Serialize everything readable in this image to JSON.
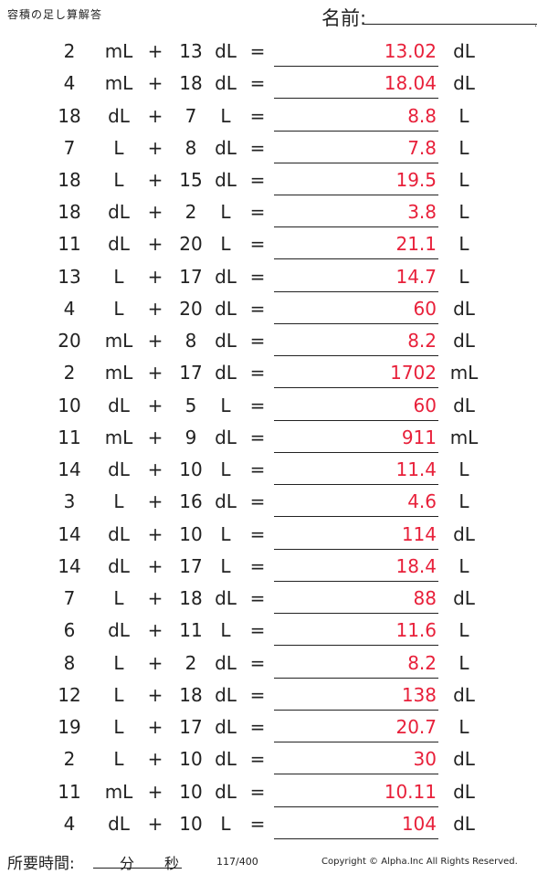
{
  "header": {
    "title": "容積の足し算解答",
    "name_label": "名前:",
    "name_dot": "."
  },
  "problems": [
    {
      "a": "2",
      "ua": "mL",
      "op": "+",
      "b": "13",
      "ub": "dL",
      "eq": "=",
      "ans": "13.02",
      "uans": "dL"
    },
    {
      "a": "4",
      "ua": "mL",
      "op": "+",
      "b": "18",
      "ub": "dL",
      "eq": "=",
      "ans": "18.04",
      "uans": "dL"
    },
    {
      "a": "18",
      "ua": "dL",
      "op": "+",
      "b": "7",
      "ub": "L",
      "eq": "=",
      "ans": "8.8",
      "uans": "L"
    },
    {
      "a": "7",
      "ua": "L",
      "op": "+",
      "b": "8",
      "ub": "dL",
      "eq": "=",
      "ans": "7.8",
      "uans": "L"
    },
    {
      "a": "18",
      "ua": "L",
      "op": "+",
      "b": "15",
      "ub": "dL",
      "eq": "=",
      "ans": "19.5",
      "uans": "L"
    },
    {
      "a": "18",
      "ua": "dL",
      "op": "+",
      "b": "2",
      "ub": "L",
      "eq": "=",
      "ans": "3.8",
      "uans": "L"
    },
    {
      "a": "11",
      "ua": "dL",
      "op": "+",
      "b": "20",
      "ub": "L",
      "eq": "=",
      "ans": "21.1",
      "uans": "L"
    },
    {
      "a": "13",
      "ua": "L",
      "op": "+",
      "b": "17",
      "ub": "dL",
      "eq": "=",
      "ans": "14.7",
      "uans": "L"
    },
    {
      "a": "4",
      "ua": "L",
      "op": "+",
      "b": "20",
      "ub": "dL",
      "eq": "=",
      "ans": "60",
      "uans": "dL"
    },
    {
      "a": "20",
      "ua": "mL",
      "op": "+",
      "b": "8",
      "ub": "dL",
      "eq": "=",
      "ans": "8.2",
      "uans": "dL"
    },
    {
      "a": "2",
      "ua": "mL",
      "op": "+",
      "b": "17",
      "ub": "dL",
      "eq": "=",
      "ans": "1702",
      "uans": "mL"
    },
    {
      "a": "10",
      "ua": "dL",
      "op": "+",
      "b": "5",
      "ub": "L",
      "eq": "=",
      "ans": "60",
      "uans": "dL"
    },
    {
      "a": "11",
      "ua": "mL",
      "op": "+",
      "b": "9",
      "ub": "dL",
      "eq": "=",
      "ans": "911",
      "uans": "mL"
    },
    {
      "a": "14",
      "ua": "dL",
      "op": "+",
      "b": "10",
      "ub": "L",
      "eq": "=",
      "ans": "11.4",
      "uans": "L"
    },
    {
      "a": "3",
      "ua": "L",
      "op": "+",
      "b": "16",
      "ub": "dL",
      "eq": "=",
      "ans": "4.6",
      "uans": "L"
    },
    {
      "a": "14",
      "ua": "dL",
      "op": "+",
      "b": "10",
      "ub": "L",
      "eq": "=",
      "ans": "114",
      "uans": "dL"
    },
    {
      "a": "14",
      "ua": "dL",
      "op": "+",
      "b": "17",
      "ub": "L",
      "eq": "=",
      "ans": "18.4",
      "uans": "L"
    },
    {
      "a": "7",
      "ua": "L",
      "op": "+",
      "b": "18",
      "ub": "dL",
      "eq": "=",
      "ans": "88",
      "uans": "dL"
    },
    {
      "a": "6",
      "ua": "dL",
      "op": "+",
      "b": "11",
      "ub": "L",
      "eq": "=",
      "ans": "11.6",
      "uans": "L"
    },
    {
      "a": "8",
      "ua": "L",
      "op": "+",
      "b": "2",
      "ub": "dL",
      "eq": "=",
      "ans": "8.2",
      "uans": "L"
    },
    {
      "a": "12",
      "ua": "L",
      "op": "+",
      "b": "18",
      "ub": "dL",
      "eq": "=",
      "ans": "138",
      "uans": "dL"
    },
    {
      "a": "19",
      "ua": "L",
      "op": "+",
      "b": "17",
      "ub": "dL",
      "eq": "=",
      "ans": "20.7",
      "uans": "L"
    },
    {
      "a": "2",
      "ua": "L",
      "op": "+",
      "b": "10",
      "ub": "dL",
      "eq": "=",
      "ans": "30",
      "uans": "dL"
    },
    {
      "a": "11",
      "ua": "mL",
      "op": "+",
      "b": "10",
      "ub": "dL",
      "eq": "=",
      "ans": "10.11",
      "uans": "dL"
    },
    {
      "a": "4",
      "ua": "dL",
      "op": "+",
      "b": "10",
      "ub": "L",
      "eq": "=",
      "ans": "104",
      "uans": "dL"
    }
  ],
  "footer": {
    "time_label": "所要時間:",
    "minutes_label": "分",
    "seconds_label": "秒",
    "page_number": "117/400",
    "copyright": "Copyright © Alpha.Inc All Rights Reserved."
  },
  "colors": {
    "answer": "#e8203a",
    "text": "#222222"
  }
}
